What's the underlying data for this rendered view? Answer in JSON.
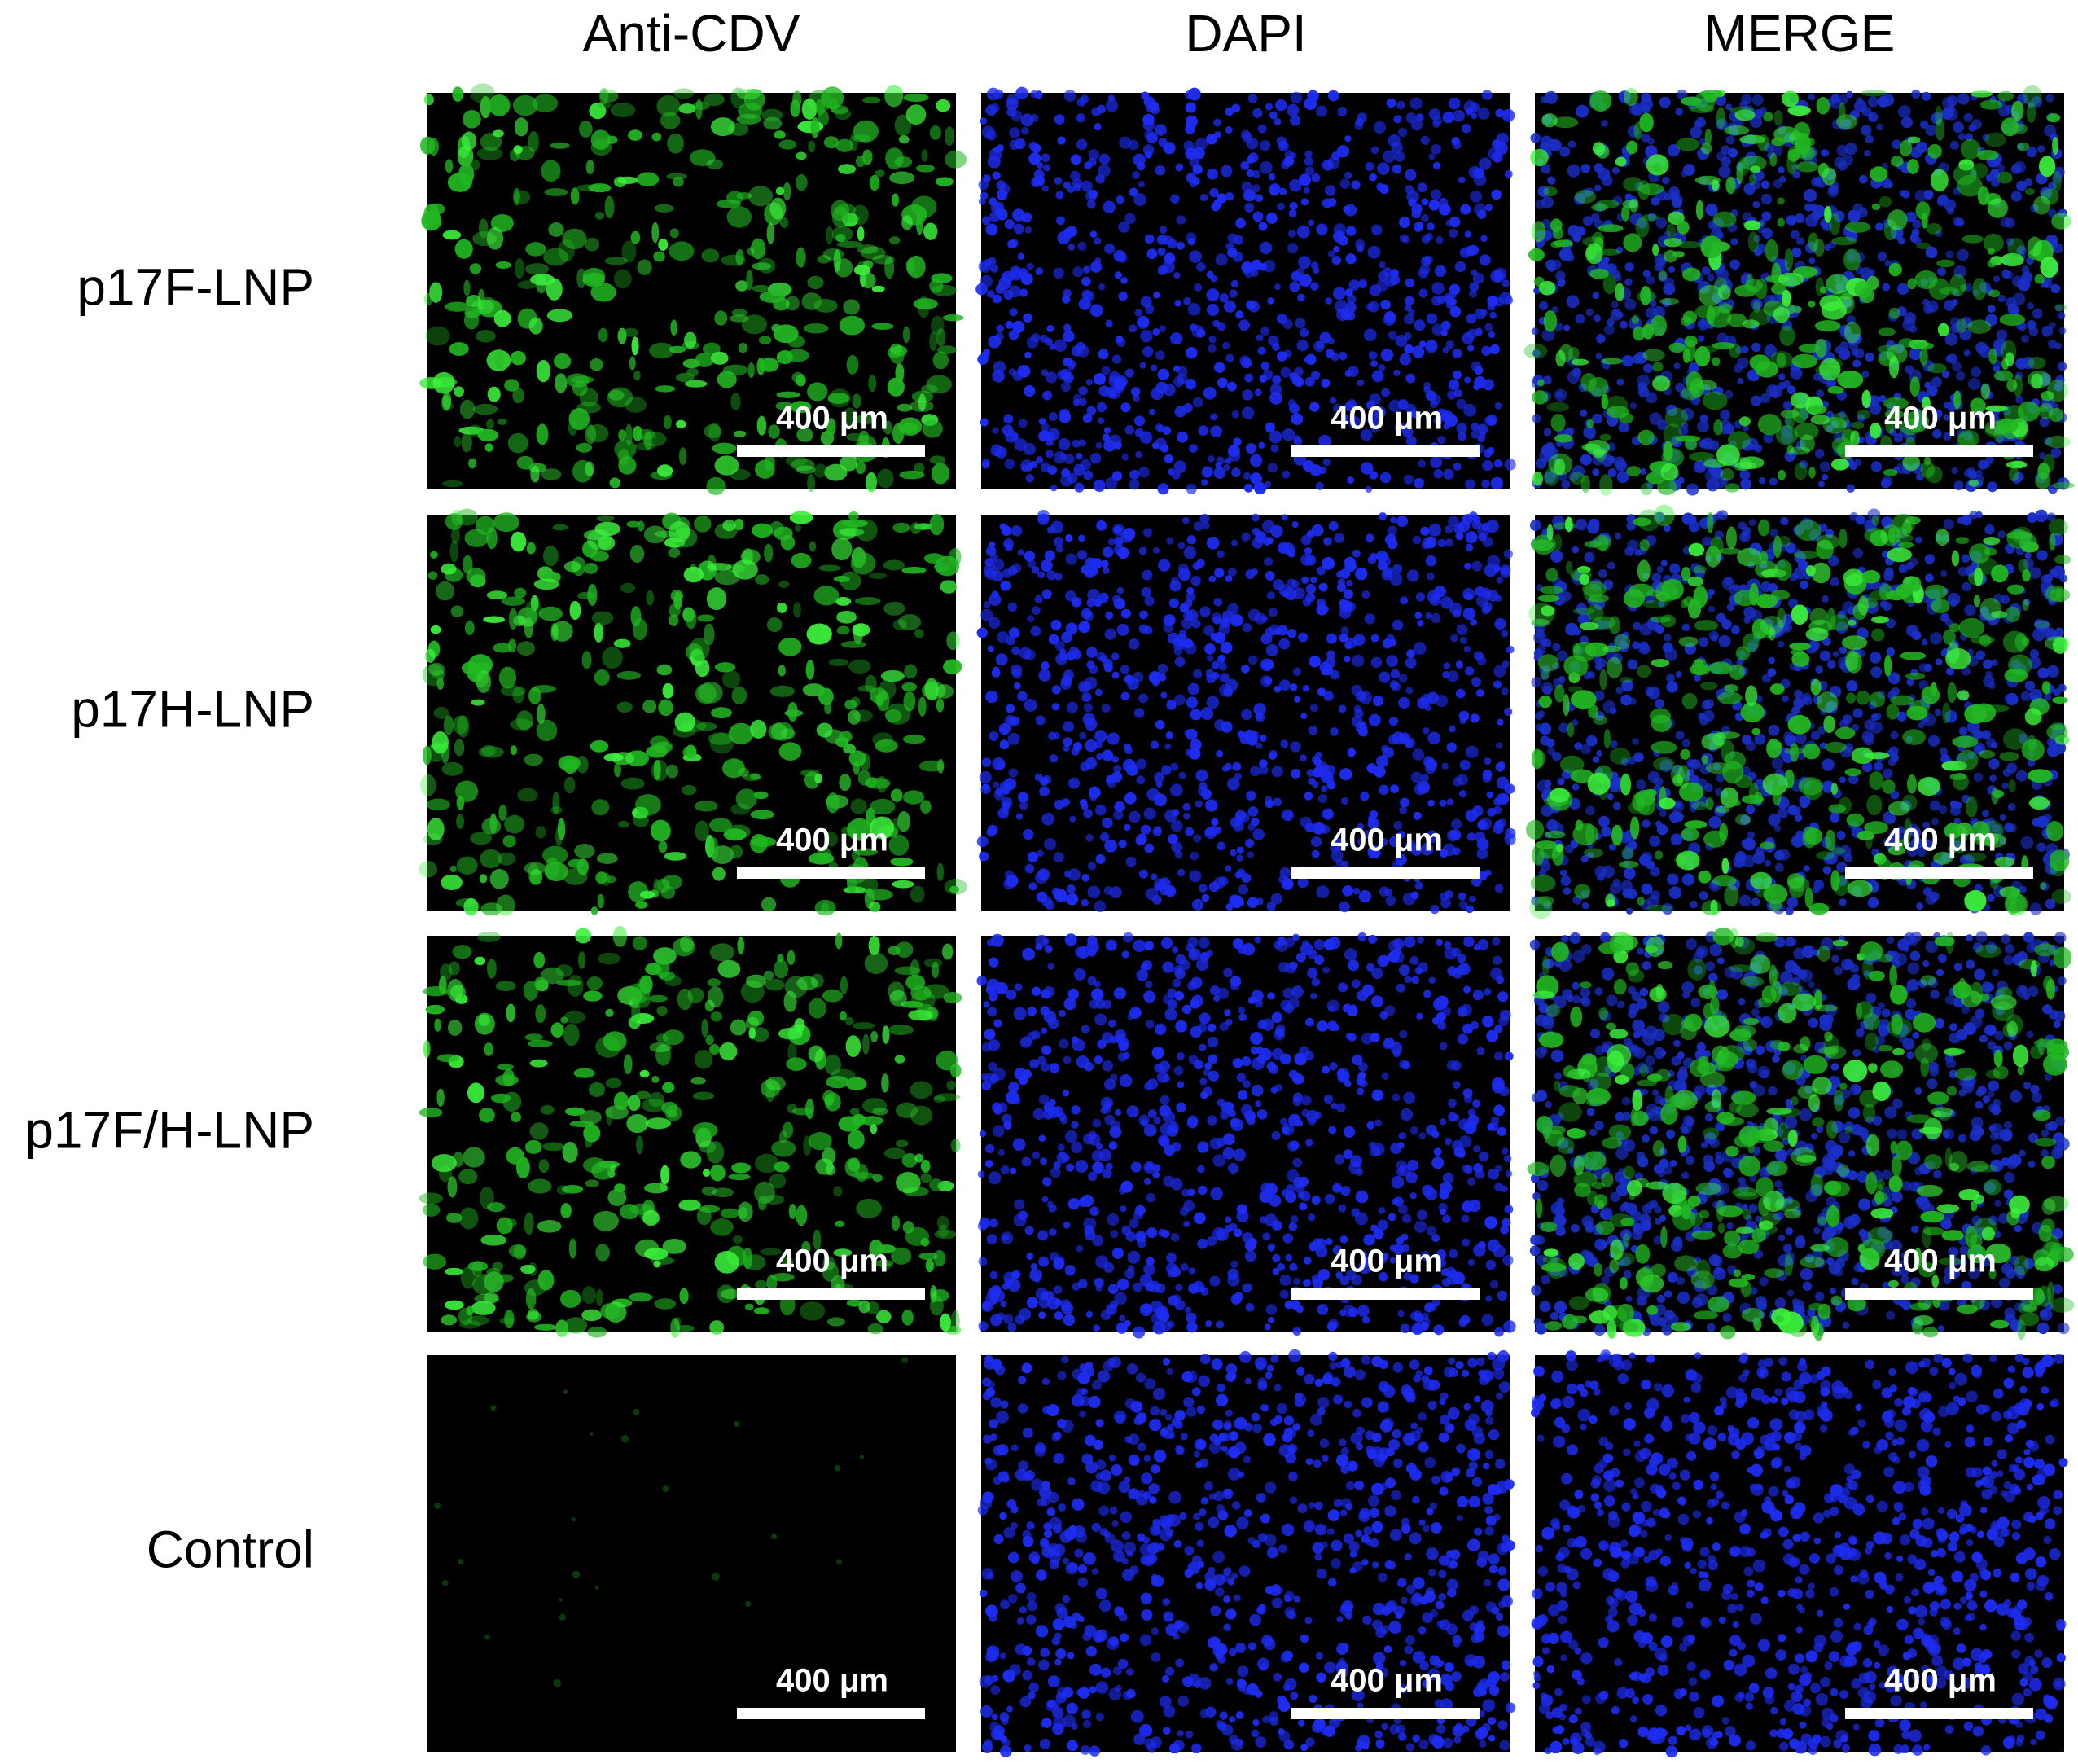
{
  "columns": [
    "Anti-CDV",
    "DAPI",
    "MERGE"
  ],
  "rows": [
    {
      "label": "p17F-LNP",
      "scale_bars": [
        "400 μm",
        "400 μm",
        "400 μm"
      ]
    },
    {
      "label": "p17H-LNP",
      "scale_bars": [
        "400 μm",
        "400 μm",
        "400 μm"
      ]
    },
    {
      "label": "p17F/H-LNP",
      "scale_bars": [
        "400 μm",
        "400 μm",
        "400 μm"
      ]
    },
    {
      "label": "Control",
      "scale_bars": [
        "400 μm",
        "400 μm",
        "400 μm"
      ]
    }
  ]
}
